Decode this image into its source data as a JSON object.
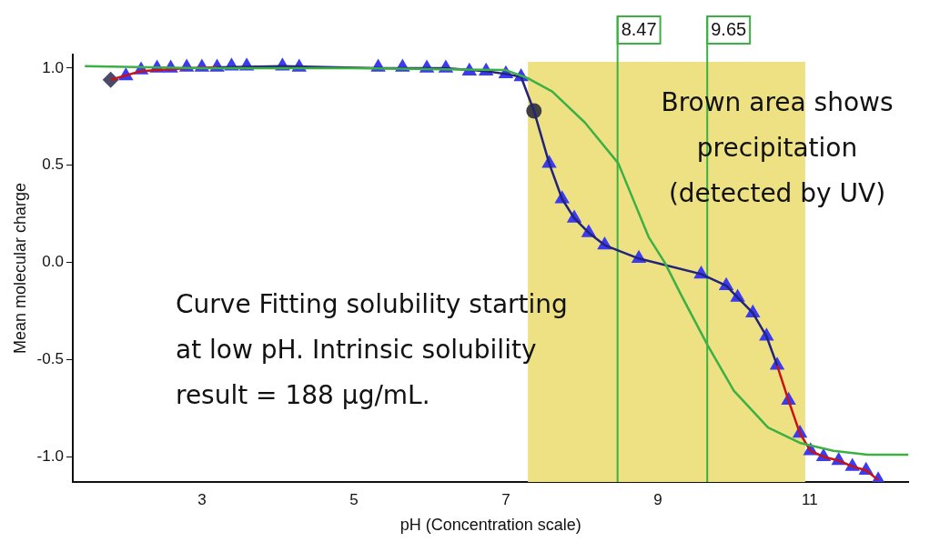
{
  "chart_data": {
    "type": "line",
    "xlabel": "pH (Concentration scale)",
    "ylabel": "Mean molecular charge",
    "xlim": [
      1.3,
      12.3
    ],
    "xticks": [
      3,
      5,
      7,
      9,
      11
    ],
    "ylim": [
      -1.13,
      1.07
    ],
    "yticks": [
      {
        "value": 1,
        "label": "1.0"
      },
      {
        "value": 0.5,
        "label": "0.5"
      },
      {
        "value": 0,
        "label": "0.0"
      },
      {
        "value": -0.5,
        "label": "-0.5"
      },
      {
        "value": -1,
        "label": "-1.0"
      }
    ],
    "grid": false,
    "legend": false,
    "bands": [
      {
        "axis": "x",
        "from": 7.29,
        "to": 10.94,
        "color": "#ede184"
      }
    ],
    "ref_lines": [
      {
        "axis": "x",
        "value": 8.47,
        "label": "8.47",
        "color": "#3cb043"
      },
      {
        "axis": "x",
        "value": 9.65,
        "label": "9.65",
        "color": "#3cb043"
      }
    ],
    "annotations": [
      "Brown area shows precipitation (detected by UV)",
      "Curve Fitting solubility starting at low pH. Intrinsic solubility result = 188 μg/mL."
    ],
    "series": [
      {
        "type": "line",
        "color": "#3cb043",
        "marker": "none",
        "x": [
          1.46,
          3.0,
          5.0,
          7.0,
          7.28,
          7.61,
          8.04,
          8.48,
          8.88,
          9.09,
          9.31,
          9.66,
          10.0,
          10.45,
          10.88,
          11.31,
          11.76,
          12.3
        ],
        "values": [
          1.01,
          1.0,
          1.0,
          0.99,
          0.95,
          0.88,
          0.72,
          0.51,
          0.13,
          0.0,
          -0.17,
          -0.43,
          -0.66,
          -0.85,
          -0.93,
          -0.97,
          -0.99,
          -0.99
        ]
      },
      {
        "type": "line",
        "color": "#cc1111",
        "marker": "none",
        "x": [
          1.8,
          2.2,
          2.8,
          3.2,
          3.4,
          10.57,
          10.72,
          10.87,
          11.01,
          11.18,
          11.38,
          11.56,
          11.74,
          11.9
        ],
        "values": [
          0.94,
          0.985,
          1.0,
          1.005,
          null,
          -0.53,
          -0.71,
          -0.88,
          -0.97,
          -1.0,
          -1.02,
          -1.05,
          -1.07,
          -1.12
        ]
      },
      {
        "type": "line",
        "color": "#22237a",
        "marker": "none",
        "x": [
          3.2,
          4.06,
          5.32,
          6.21,
          6.74,
          7.0,
          7.2,
          7.37,
          7.57,
          7.74,
          7.9,
          8.09,
          8.3,
          8.75,
          9.57,
          9.9,
          10.05,
          10.25,
          10.43,
          10.57
        ],
        "values": [
          1.005,
          1.01,
          1.0,
          1.0,
          0.985,
          0.97,
          0.955,
          0.78,
          0.51,
          0.327,
          0.228,
          0.153,
          0.089,
          0.02,
          -0.06,
          -0.12,
          -0.18,
          -0.26,
          -0.38,
          -0.53
        ]
      },
      {
        "type": "scatter",
        "color": "#3b3bf0",
        "marker": "triangle",
        "x": [
          3.2,
          3.39,
          3.59,
          4.06,
          4.28,
          5.32,
          5.64,
          5.96,
          6.21,
          6.52,
          6.74,
          7.0,
          7.2,
          7.57,
          7.74,
          7.9,
          8.09,
          8.3,
          8.75,
          9.57,
          9.9,
          10.05,
          10.25,
          10.43,
          10.57
        ],
        "values": [
          1.005,
          1.01,
          1.01,
          1.01,
          1.005,
          1.005,
          1.005,
          1.0,
          1.0,
          0.985,
          0.985,
          0.97,
          0.955,
          0.51,
          0.327,
          0.228,
          0.153,
          0.089,
          0.02,
          -0.06,
          -0.12,
          -0.18,
          -0.26,
          -0.38,
          -0.53
        ]
      },
      {
        "type": "scatter",
        "color": "#3b3bf0",
        "marker": "triangle",
        "x": [
          2.0,
          2.2,
          2.41,
          2.59,
          2.8,
          3.0,
          10.72,
          10.87,
          11.01,
          11.18,
          11.38,
          11.56,
          11.74,
          11.9
        ],
        "values": [
          0.96,
          0.99,
          1.0,
          1.0,
          1.005,
          1.005,
          -0.71,
          -0.88,
          -0.97,
          -1.0,
          -1.02,
          -1.05,
          -1.07,
          -1.12
        ]
      },
      {
        "type": "scatter",
        "color": "#4a4a6a",
        "marker": "diamond",
        "x": [
          1.8
        ],
        "values": [
          0.94
        ]
      },
      {
        "type": "scatter",
        "color": "#404040",
        "marker": "circle",
        "x": [
          7.37
        ],
        "values": [
          0.78
        ]
      }
    ]
  }
}
